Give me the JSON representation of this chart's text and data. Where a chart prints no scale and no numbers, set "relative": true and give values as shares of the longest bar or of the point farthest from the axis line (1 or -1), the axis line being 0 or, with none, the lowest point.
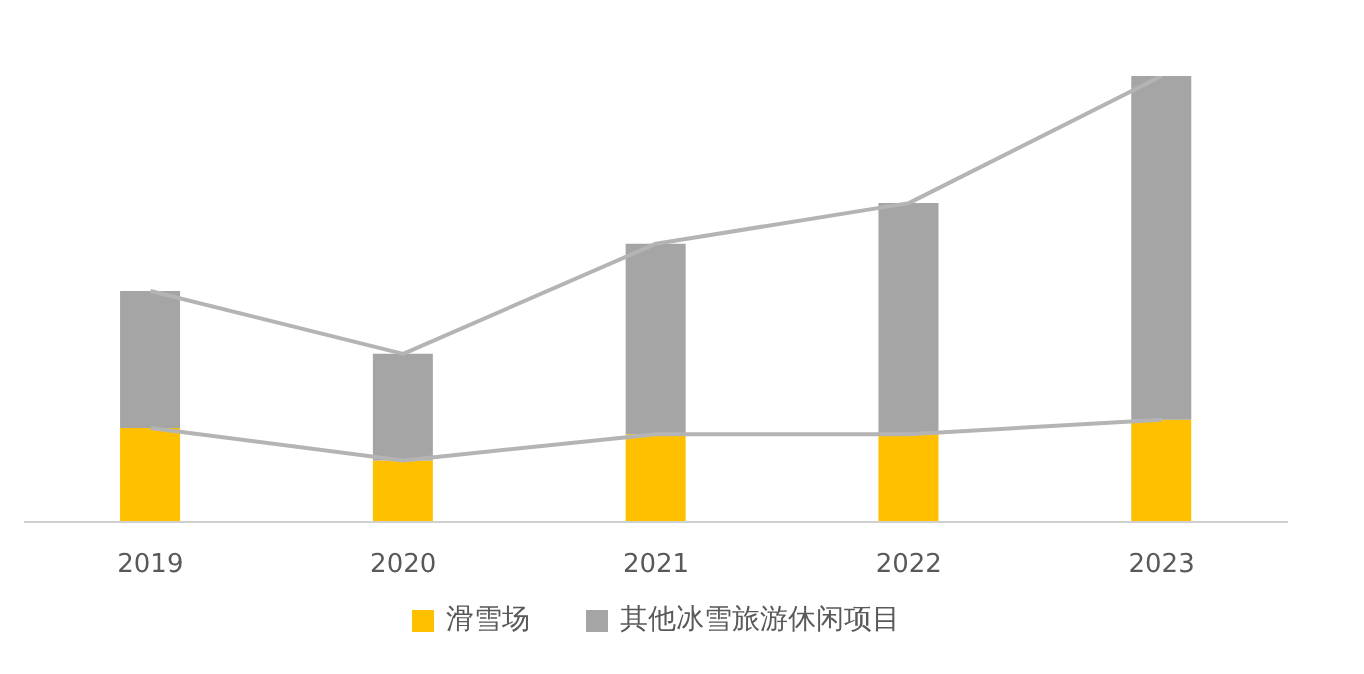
{
  "chart_data": {
    "type": "bar",
    "stacked": true,
    "relative": true,
    "categories": [
      "2019",
      "2020",
      "2021",
      "2022",
      "2023"
    ],
    "series": [
      {
        "name": "滑雪场",
        "color": "#ffc000",
        "values": [
          0.211,
          0.138,
          0.197,
          0.197,
          0.229
        ]
      },
      {
        "name": "其他冰雪旅游休闲项目",
        "color": "#a5a5a5",
        "values": [
          0.307,
          0.239,
          0.427,
          0.518,
          0.771
        ]
      }
    ],
    "legend": "bottom",
    "grid": false
  }
}
